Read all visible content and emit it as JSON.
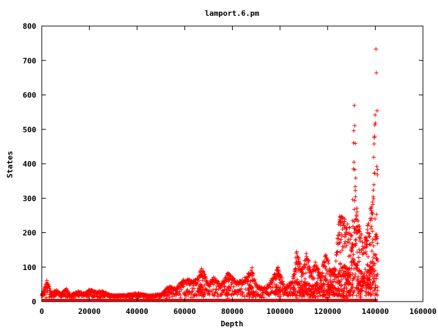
{
  "chart_data": {
    "type": "scatter",
    "title": "lamport.6.pm",
    "xlabel": "Depth",
    "ylabel": "States",
    "xlim": [
      0,
      160000
    ],
    "ylim": [
      0,
      800
    ],
    "xticks": [
      0,
      20000,
      40000,
      60000,
      80000,
      100000,
      120000,
      140000,
      160000
    ],
    "yticks": [
      0,
      100,
      200,
      300,
      400,
      500,
      600,
      700,
      800
    ],
    "grid": false,
    "legend": "none",
    "marker": "plus",
    "color": "#ff0000",
    "series": [
      {
        "envelope": [
          [
            0,
            20
          ],
          [
            1000,
            40
          ],
          [
            2000,
            70
          ],
          [
            3000,
            45
          ],
          [
            4000,
            25
          ],
          [
            6000,
            35
          ],
          [
            8000,
            22
          ],
          [
            10000,
            40
          ],
          [
            12000,
            20
          ],
          [
            15000,
            30
          ],
          [
            18000,
            25
          ],
          [
            20000,
            38
          ],
          [
            22000,
            30
          ],
          [
            25000,
            32
          ],
          [
            28000,
            22
          ],
          [
            30000,
            18
          ],
          [
            35000,
            20
          ],
          [
            40000,
            25
          ],
          [
            45000,
            18
          ],
          [
            50000,
            22
          ],
          [
            53000,
            45
          ],
          [
            56000,
            40
          ],
          [
            60000,
            70
          ],
          [
            63000,
            60
          ],
          [
            65000,
            65
          ],
          [
            67000,
            100
          ],
          [
            70000,
            55
          ],
          [
            72000,
            75
          ],
          [
            75000,
            50
          ],
          [
            78000,
            85
          ],
          [
            80000,
            70
          ],
          [
            83000,
            60
          ],
          [
            86000,
            75
          ],
          [
            88000,
            105
          ],
          [
            90000,
            50
          ],
          [
            93000,
            40
          ],
          [
            96000,
            60
          ],
          [
            99000,
            100
          ],
          [
            102000,
            45
          ],
          [
            105000,
            60
          ],
          [
            107000,
            155
          ],
          [
            109000,
            90
          ],
          [
            111000,
            145
          ],
          [
            113000,
            90
          ],
          [
            115000,
            120
          ],
          [
            117000,
            80
          ],
          [
            119000,
            150
          ],
          [
            121000,
            90
          ],
          [
            123000,
            110
          ],
          [
            125000,
            260
          ],
          [
            127000,
            240
          ],
          [
            129000,
            220
          ],
          [
            130000,
            180
          ],
          [
            131000,
            590
          ],
          [
            132000,
            300
          ],
          [
            133000,
            240
          ],
          [
            134000,
            200
          ],
          [
            135000,
            160
          ],
          [
            136000,
            200
          ],
          [
            137000,
            230
          ],
          [
            138000,
            280
          ],
          [
            139000,
            310
          ],
          [
            139800,
            600
          ],
          [
            140300,
            780
          ],
          [
            140800,
            420
          ],
          [
            141000,
            0
          ]
        ]
      }
    ]
  }
}
